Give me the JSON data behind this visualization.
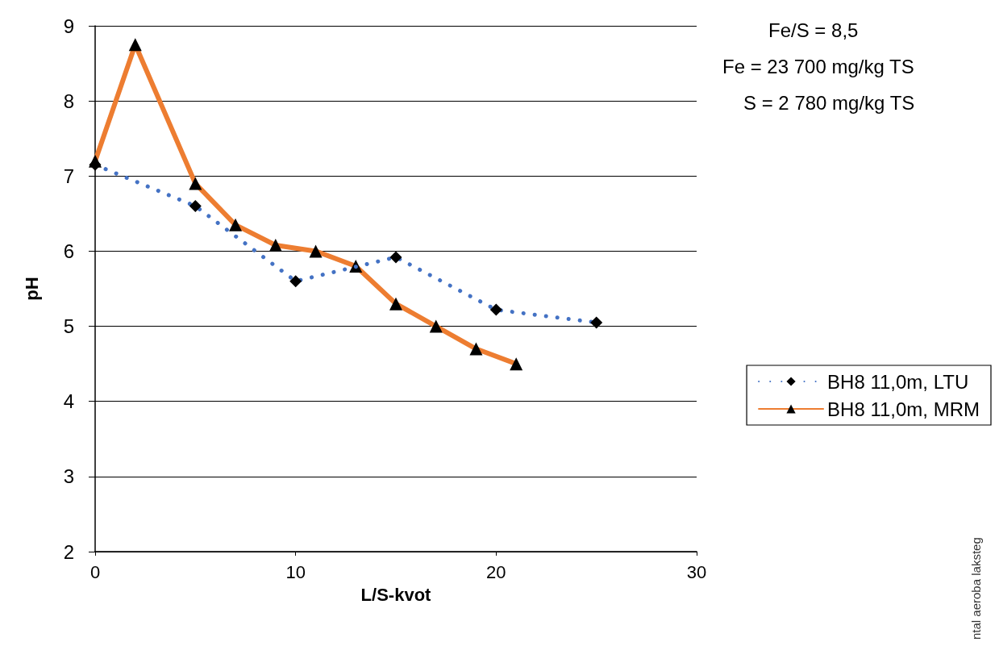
{
  "chart_data": {
    "type": "line",
    "xlabel": "L/S-kvot",
    "ylabel": "pH",
    "xlim": [
      0,
      30
    ],
    "xticks": [
      0,
      10,
      20,
      30
    ],
    "ylim": [
      2,
      9
    ],
    "yticks": [
      2,
      3,
      4,
      5,
      6,
      7,
      8,
      9
    ],
    "grid": "y",
    "legend": "right",
    "annotations": [
      "Fe/S = 8,5",
      "Fe = 23 700 mg/kg TS",
      "S = 2 780 mg/kg TS",
      "ntal aeroba laksteg"
    ],
    "series": [
      {
        "name": "BH8 11,0m, LTU",
        "color": "#4472c4",
        "line_style": "dotted",
        "marker": "diamond",
        "x": [
          0,
          5,
          10,
          15,
          20,
          25
        ],
        "values": [
          7.15,
          6.6,
          5.6,
          5.92,
          5.22,
          5.05
        ]
      },
      {
        "name": "BH8 11,0m, MRM",
        "color": "#ed7d31",
        "line_style": "solid",
        "marker": "triangle",
        "x": [
          0,
          2,
          5,
          7,
          9,
          11,
          13,
          15,
          17,
          19,
          21
        ],
        "values": [
          7.2,
          8.75,
          6.9,
          6.35,
          6.08,
          6.0,
          5.8,
          5.3,
          5.0,
          4.7,
          4.5
        ]
      }
    ]
  }
}
